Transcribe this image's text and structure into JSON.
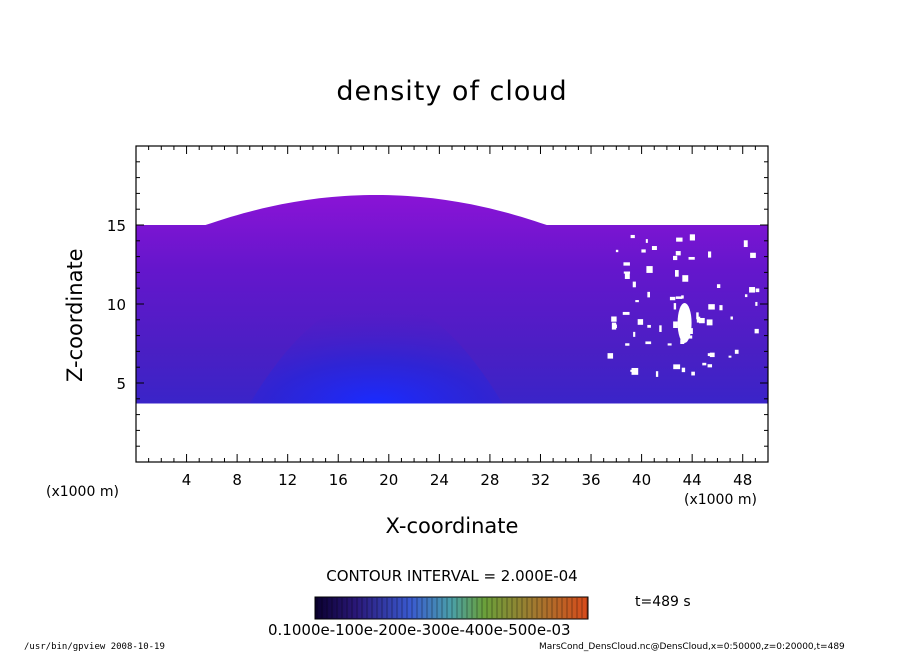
{
  "chart_data": {
    "type": "heatmap",
    "title": "density of cloud",
    "xlabel": "X-coordinate",
    "ylabel": "Z-coordinate",
    "x_unit_label": "(x1000 m)",
    "y_unit_label": "(x1000 m)",
    "xlim": [
      0,
      50
    ],
    "ylim": [
      0,
      20
    ],
    "x_ticks": [
      4,
      8,
      12,
      16,
      20,
      24,
      28,
      32,
      36,
      40,
      44,
      48
    ],
    "y_ticks": [
      5,
      10,
      15
    ],
    "contour_interval_text": "CONTOUR INTERVAL = 2.000E-04",
    "time_label": "t=489 s",
    "colorbar_labels_text": "0.1000e-100e-200e-300e-400e-500e-03",
    "colorbar_range": [
      0.0001,
      0.0006
    ],
    "colors": {
      "field_top": "#8a14d6",
      "field_mid": "#4818c0",
      "field_core": "#1a2bff",
      "colorbar_low": "#0a0030",
      "colorbar_mid": "#6aa03a",
      "colorbar_high": "#d84a1a"
    }
  },
  "footer": {
    "left": "/usr/bin/gpview   2008-10-19",
    "right": "MarsCond_DensCloud.nc@DensCloud,x=0:50000,z=0:20000,t=489"
  }
}
